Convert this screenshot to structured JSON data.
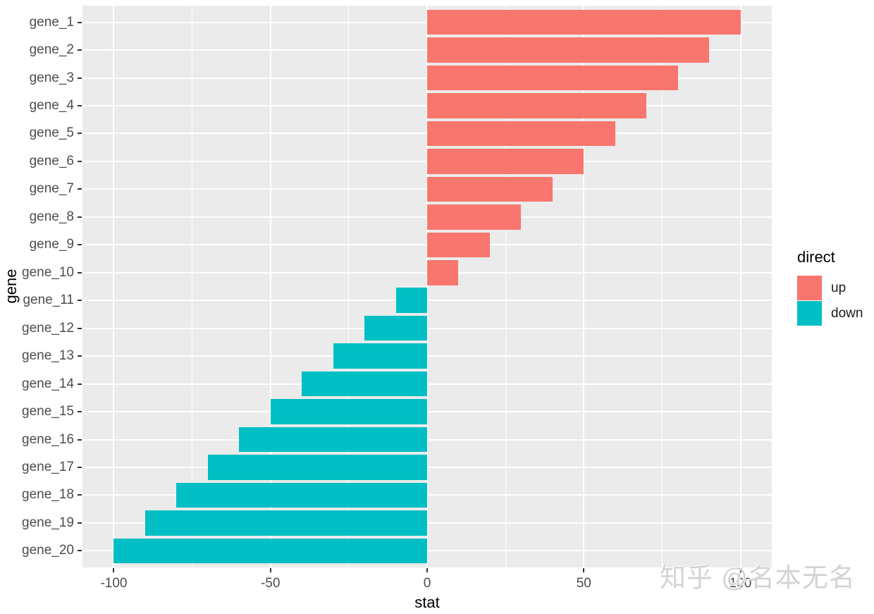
{
  "figure": {
    "background": "#FFFFFF",
    "panel_background": "#EBEBEB",
    "gridline_color": "#FFFFFF",
    "axis_text_color": "#4D4D4D",
    "tick_mark_color": "#333333"
  },
  "axes": {
    "x": {
      "title": "stat",
      "tick_labels": [
        "-100",
        "-50",
        "0",
        "50",
        "100"
      ],
      "tick_values": [
        -100,
        -50,
        0,
        50,
        100
      ],
      "minor_tick_values": [
        -75,
        -25,
        25,
        75
      ]
    },
    "y": {
      "title": "gene"
    }
  },
  "legend": {
    "title": "direct",
    "items": [
      {
        "label": "up",
        "color": "#F8766D"
      },
      {
        "label": "down",
        "color": "#00BFC4"
      }
    ]
  },
  "watermark": {
    "text": "知乎 @名本无名"
  },
  "chart_data": {
    "type": "bar",
    "orientation": "horizontal",
    "title": "",
    "xlabel": "stat",
    "ylabel": "gene",
    "xlim": [
      -110,
      110
    ],
    "grid": "on",
    "legend_position": "right",
    "legend_title": "direct",
    "categories": [
      "gene_1",
      "gene_2",
      "gene_3",
      "gene_4",
      "gene_5",
      "gene_6",
      "gene_7",
      "gene_8",
      "gene_9",
      "gene_10",
      "gene_11",
      "gene_12",
      "gene_13",
      "gene_14",
      "gene_15",
      "gene_16",
      "gene_17",
      "gene_18",
      "gene_19",
      "gene_20"
    ],
    "values": [
      100,
      90,
      80,
      70,
      60,
      50,
      40,
      30,
      20,
      10,
      -10,
      -20,
      -30,
      -40,
      -50,
      -60,
      -70,
      -80,
      -90,
      -100
    ],
    "groups": [
      "up",
      "up",
      "up",
      "up",
      "up",
      "up",
      "up",
      "up",
      "up",
      "up",
      "down",
      "down",
      "down",
      "down",
      "down",
      "down",
      "down",
      "down",
      "down",
      "down"
    ],
    "colors": {
      "up": "#F8766D",
      "down": "#00BFC4"
    }
  }
}
